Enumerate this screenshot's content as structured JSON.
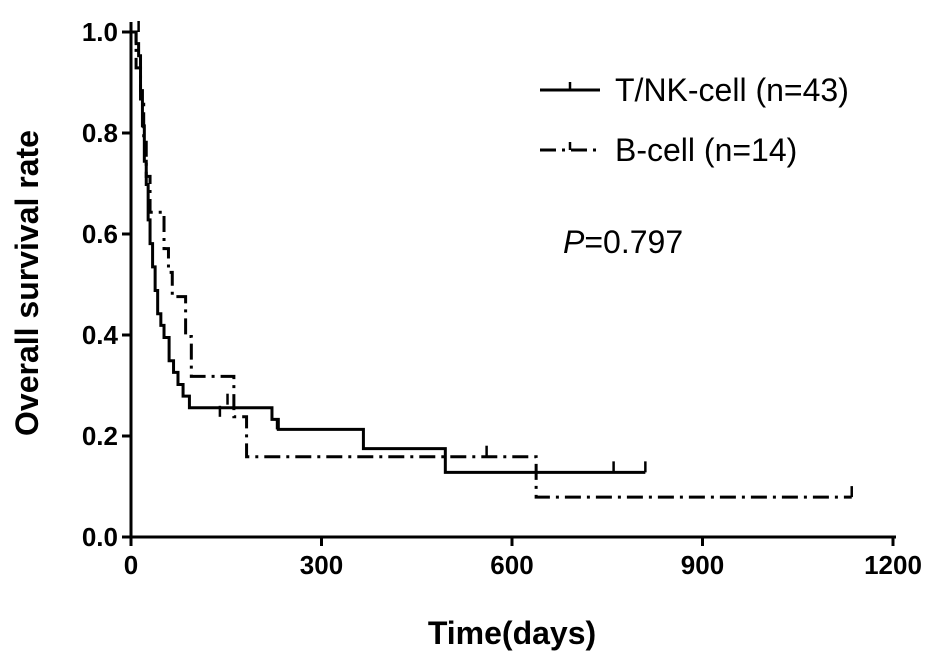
{
  "chart_data": {
    "type": "line",
    "chart_subtype": "kaplan-meier-survival",
    "xlabel": "Time(days)",
    "ylabel": "Overall survival rate",
    "xlim": [
      0,
      1200
    ],
    "ylim": [
      0.0,
      1.0
    ],
    "xticks": [
      "0",
      "300",
      "600",
      "900",
      "1200"
    ],
    "yticks": [
      "0.0",
      "0.2",
      "0.4",
      "0.6",
      "0.8",
      "1.0"
    ],
    "annotation": {
      "prefix": "P",
      "text": "=0.797"
    },
    "legend_position": "top-right",
    "series": [
      {
        "name": "T/NK-cell (n=43)",
        "line_style": "solid",
        "color": "#000000",
        "steps": [
          [
            0,
            1.0
          ],
          [
            8,
            0.977
          ],
          [
            12,
            0.953
          ],
          [
            15,
            0.884
          ],
          [
            18,
            0.814
          ],
          [
            21,
            0.744
          ],
          [
            24,
            0.698
          ],
          [
            27,
            0.628
          ],
          [
            30,
            0.581
          ],
          [
            34,
            0.535
          ],
          [
            38,
            0.488
          ],
          [
            42,
            0.442
          ],
          [
            47,
            0.419
          ],
          [
            52,
            0.395
          ],
          [
            60,
            0.349
          ],
          [
            67,
            0.326
          ],
          [
            74,
            0.302
          ],
          [
            82,
            0.279
          ],
          [
            92,
            0.256
          ],
          [
            222,
            0.233
          ],
          [
            232,
            0.213
          ],
          [
            366,
            0.175
          ],
          [
            495,
            0.128
          ],
          [
            810,
            0.128
          ]
        ],
        "censored": [
          [
            230,
            0.213
          ],
          [
            760,
            0.128
          ],
          [
            810,
            0.128
          ]
        ]
      },
      {
        "name": "B-cell (n=14)",
        "line_style": "dash-dot",
        "color": "#000000",
        "steps": [
          [
            0,
            1.0
          ],
          [
            8,
            0.929
          ],
          [
            15,
            0.857
          ],
          [
            20,
            0.786
          ],
          [
            24,
            0.714
          ],
          [
            30,
            0.643
          ],
          [
            52,
            0.571
          ],
          [
            59,
            0.524
          ],
          [
            65,
            0.476
          ],
          [
            86,
            0.397
          ],
          [
            95,
            0.318
          ],
          [
            162,
            0.238
          ],
          [
            182,
            0.159
          ],
          [
            638,
            0.079
          ],
          [
            1135,
            0.079
          ]
        ],
        "censored": [
          [
            12,
            1.0
          ],
          [
            140,
            0.238
          ],
          [
            152,
            0.262
          ],
          [
            560,
            0.159
          ],
          [
            1135,
            0.079
          ]
        ]
      }
    ]
  }
}
